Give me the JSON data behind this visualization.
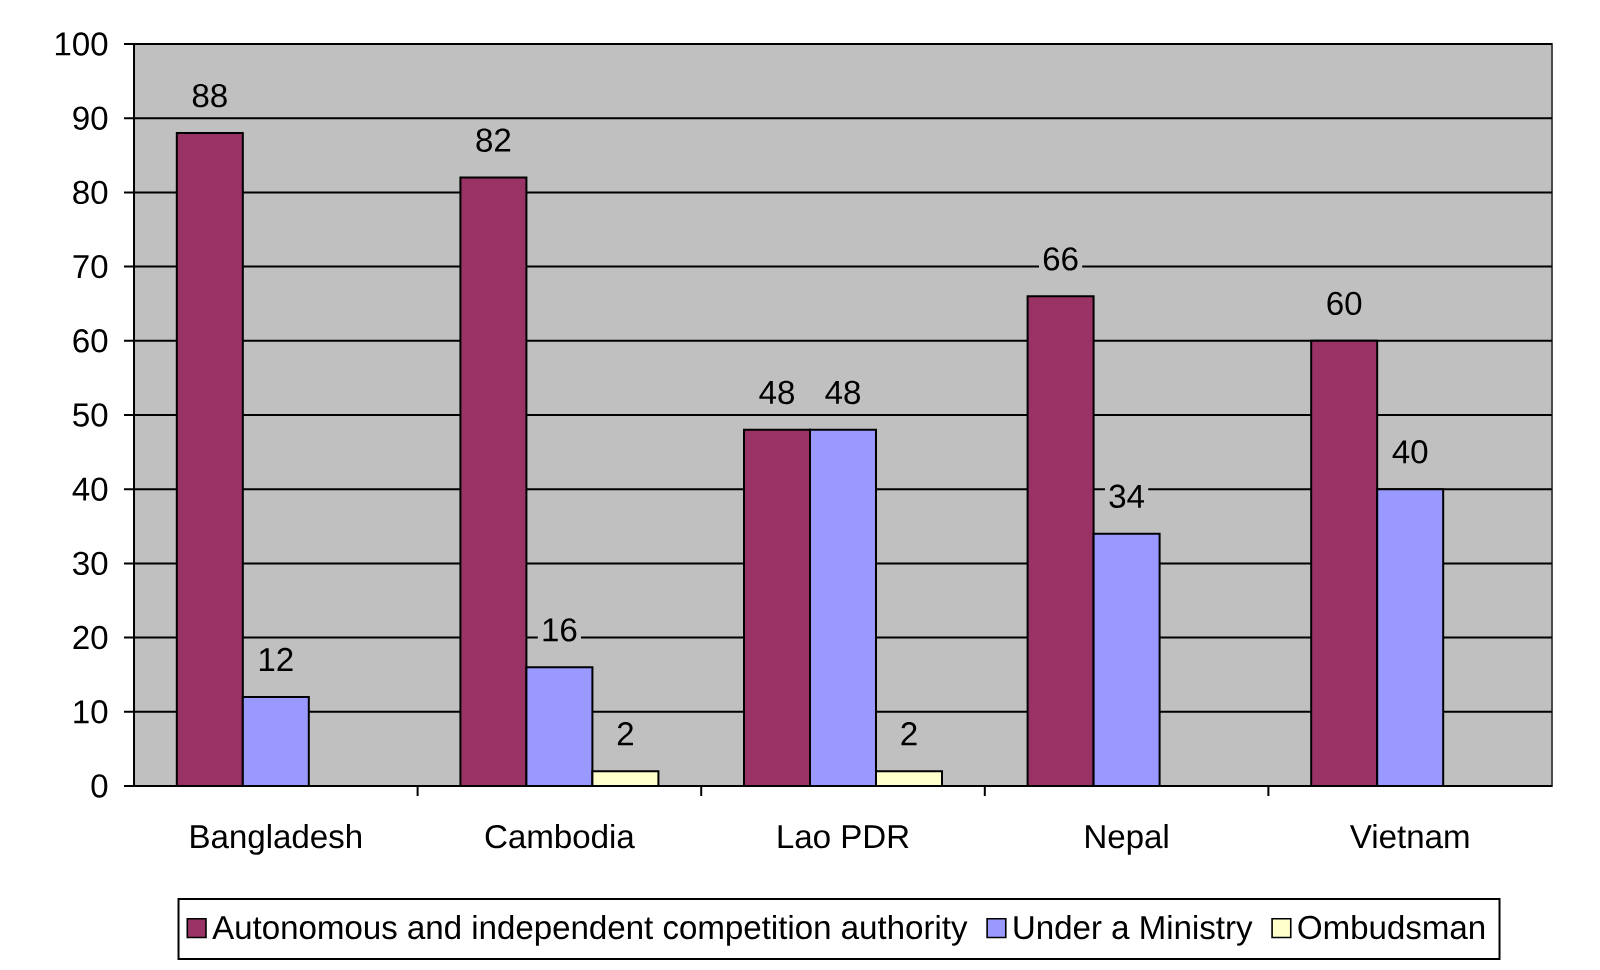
{
  "chart_data": {
    "type": "bar",
    "categories": [
      "Bangladesh",
      "Cambodia",
      "Lao PDR",
      "Nepal",
      "Vietnam"
    ],
    "series": [
      {
        "name": "Autonomous and independent competition authority",
        "color": "#993366",
        "values": [
          88,
          82,
          48,
          66,
          60
        ]
      },
      {
        "name": "Under a Ministry",
        "color": "#9999ff",
        "values": [
          12,
          16,
          48,
          34,
          40
        ]
      },
      {
        "name": "Ombudsman",
        "color": "#ffffcc",
        "values": [
          null,
          2,
          2,
          null,
          null
        ]
      }
    ],
    "ylim": [
      0,
      100
    ],
    "yticks": [
      0,
      10,
      20,
      30,
      40,
      50,
      60,
      70,
      80,
      90,
      100
    ],
    "grid": "y",
    "legend": "bottom",
    "data_labels": true
  }
}
